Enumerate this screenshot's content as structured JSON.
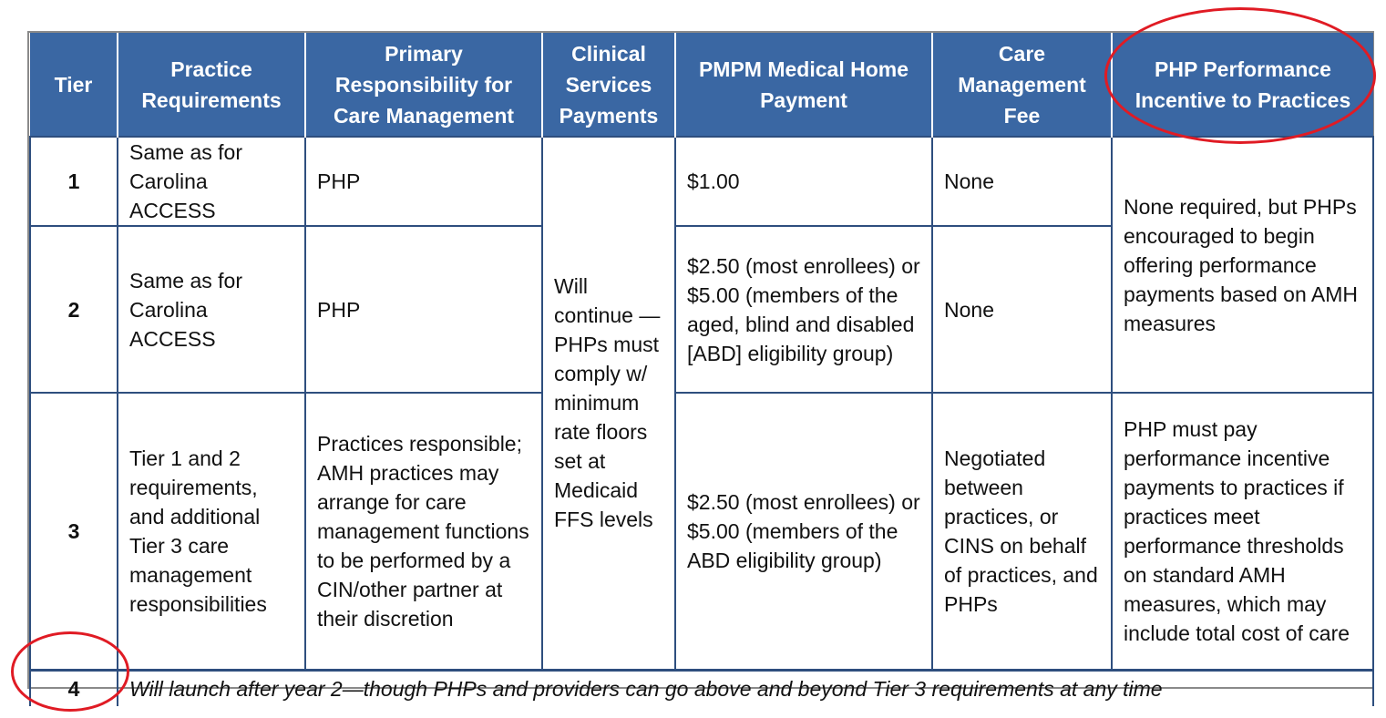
{
  "table": {
    "headers": [
      "Tier",
      "Practice Requirements",
      "Primary Responsibility for Care Management",
      "Clinical Services Payments",
      "PMPM Medical Home Payment",
      "Care Management Fee",
      "PHP Performance Incentive to Practices"
    ],
    "rows": [
      {
        "tier": "1",
        "practice_requirements": "Same as for Carolina ACCESS",
        "responsibility": "PHP",
        "pmpm": "$1.00",
        "cm_fee": "None"
      },
      {
        "tier": "2",
        "practice_requirements": "Same as for Carolina ACCESS",
        "responsibility": "PHP",
        "pmpm": "$2.50 (most enrollees) or $5.00 (members of the aged, blind and disabled [ABD] eligibility group)",
        "cm_fee": "None"
      },
      {
        "tier": "3",
        "practice_requirements": "Tier 1 and 2 requirements, and additional Tier 3 care management responsibilities",
        "responsibility": "Practices responsible; AMH practices may arrange for care management functions to be performed by a CIN/other partner at their discretion",
        "pmpm": "$2.50 (most enrollees) or $5.00 (members of the ABD eligibility group)",
        "cm_fee": "Negotiated between practices, or CINS on behalf of practices, and PHPs",
        "incentive": "PHP must pay performance incentive payments to practices if practices meet performance thresholds on standard AMH measures, which may include total cost of care"
      }
    ],
    "clinical_services_merged": "Will continue —PHPs must comply w/ minimum rate floors set at Medicaid FFS levels",
    "incentive_tiers_1_2": "None required, but PHPs encouraged to begin offering performance payments based on AMH measures",
    "tier4": {
      "tier": "4",
      "note": "Will launch after year 2—though PHPs and providers can go above and beyond Tier 3 requirements at any time"
    }
  },
  "colors": {
    "header_bg": "#3a67a3",
    "border": "#2e4e7e",
    "highlight_oval": "#e01b24"
  }
}
